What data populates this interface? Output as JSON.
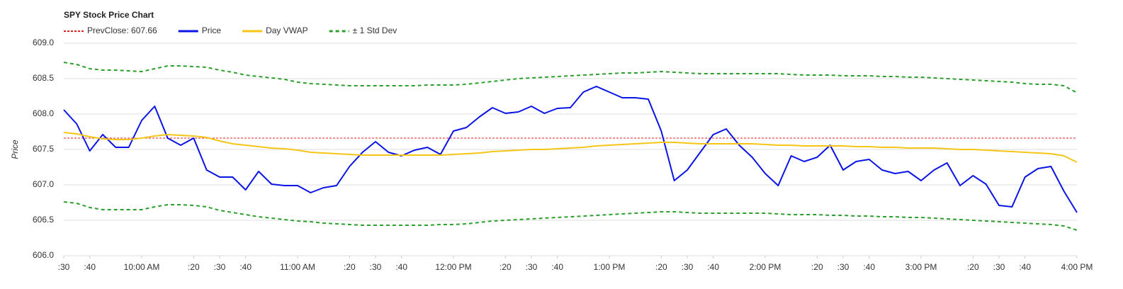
{
  "chart_data": {
    "type": "line",
    "title": "SPY Stock Price Chart",
    "y_label": "Price",
    "x": [
      "9:30",
      "9:35",
      "9:40",
      "9:45",
      "9:50",
      "9:55",
      "10:00",
      "10:05",
      "10:10",
      "10:15",
      "10:20",
      "10:25",
      "10:30",
      "10:35",
      "10:40",
      "10:45",
      "10:50",
      "10:55",
      "11:00",
      "11:05",
      "11:10",
      "11:15",
      "11:20",
      "11:25",
      "11:30",
      "11:35",
      "11:40",
      "11:45",
      "11:50",
      "11:55",
      "12:00",
      "12:05",
      "12:10",
      "12:15",
      "12:20",
      "12:25",
      "12:30",
      "12:35",
      "12:40",
      "12:45",
      "12:50",
      "12:55",
      "13:00",
      "13:05",
      "13:10",
      "13:15",
      "13:20",
      "13:25",
      "13:30",
      "13:35",
      "13:40",
      "13:45",
      "13:50",
      "13:55",
      "14:00",
      "14:05",
      "14:10",
      "14:15",
      "14:20",
      "14:25",
      "14:30",
      "14:35",
      "14:40",
      "14:45",
      "14:50",
      "14:55",
      "15:00",
      "15:05",
      "15:10",
      "15:15",
      "15:20",
      "15:25",
      "15:30",
      "15:35",
      "15:40",
      "15:45",
      "15:50",
      "15:55",
      "16:00"
    ],
    "reference_line": {
      "name": "PrevClose: 607.66",
      "value": 607.66,
      "color": "#e02020",
      "dashed": true
    },
    "series": [
      {
        "name": "Price",
        "color": "#0a14e6",
        "values": [
          608.06,
          607.86,
          607.48,
          607.71,
          607.53,
          607.53,
          607.91,
          608.11,
          607.66,
          607.56,
          607.66,
          607.21,
          607.11,
          607.11,
          606.93,
          607.19,
          607.01,
          606.99,
          606.99,
          606.89,
          606.96,
          606.99,
          607.26,
          607.46,
          607.61,
          607.46,
          607.41,
          607.49,
          607.53,
          607.43,
          607.76,
          607.81,
          607.96,
          608.09,
          608.01,
          608.03,
          608.11,
          608.01,
          608.08,
          608.09,
          608.31,
          608.39,
          608.31,
          608.23,
          608.23,
          608.21,
          607.76,
          607.06,
          607.21,
          607.46,
          607.71,
          607.79,
          607.56,
          607.39,
          607.16,
          606.99,
          607.41,
          607.33,
          607.39,
          607.56,
          607.21,
          607.33,
          607.36,
          607.21,
          607.16,
          607.19,
          607.06,
          607.21,
          607.31,
          606.99,
          607.13,
          607.01,
          606.71,
          606.69,
          607.11,
          607.23,
          607.26,
          606.91,
          606.61
        ]
      },
      {
        "name": "Day VWAP",
        "color": "#f5c518",
        "values": [
          607.74,
          607.72,
          607.68,
          607.65,
          607.64,
          607.64,
          607.66,
          607.69,
          607.71,
          607.7,
          607.69,
          607.67,
          607.62,
          607.58,
          607.56,
          607.54,
          607.52,
          607.51,
          607.49,
          607.46,
          607.45,
          607.44,
          607.43,
          607.42,
          607.42,
          607.42,
          607.42,
          607.42,
          607.42,
          607.42,
          607.43,
          607.44,
          607.45,
          607.47,
          607.48,
          607.49,
          607.5,
          607.5,
          607.51,
          607.52,
          607.53,
          607.55,
          607.56,
          607.57,
          607.58,
          607.59,
          607.6,
          607.6,
          607.59,
          607.58,
          607.58,
          607.58,
          607.58,
          607.58,
          607.57,
          607.56,
          607.56,
          607.55,
          607.55,
          607.55,
          607.55,
          607.54,
          607.54,
          607.53,
          607.53,
          607.52,
          607.52,
          607.52,
          607.51,
          607.5,
          607.5,
          607.49,
          607.48,
          607.47,
          607.46,
          607.45,
          607.44,
          607.41,
          607.32
        ]
      },
      {
        "name": "± 1 Std Dev",
        "color": "#2ca02c",
        "dashed": true,
        "values": [
          608.73,
          608.7,
          608.64,
          608.62,
          608.62,
          608.61,
          608.6,
          608.64,
          608.68,
          608.68,
          608.67,
          608.66,
          608.62,
          608.59,
          608.55,
          608.53,
          608.51,
          608.49,
          608.45,
          608.43,
          608.42,
          608.41,
          608.4,
          608.4,
          608.4,
          608.4,
          608.4,
          608.4,
          608.41,
          608.41,
          608.41,
          608.42,
          608.44,
          608.46,
          608.48,
          608.5,
          608.51,
          608.52,
          608.53,
          608.54,
          608.55,
          608.56,
          608.57,
          608.58,
          608.58,
          608.59,
          608.6,
          608.59,
          608.58,
          608.57,
          608.57,
          608.57,
          608.57,
          608.57,
          608.57,
          608.57,
          608.56,
          608.55,
          608.55,
          608.55,
          608.54,
          608.54,
          608.54,
          608.53,
          608.53,
          608.52,
          608.52,
          608.51,
          608.5,
          608.49,
          608.48,
          608.47,
          608.46,
          608.45,
          608.43,
          608.42,
          608.42,
          608.4,
          608.3
        ]
      },
      {
        "color": "#2ca02c",
        "dashed": true,
        "values": [
          606.76,
          606.74,
          606.68,
          606.65,
          606.65,
          606.65,
          606.65,
          606.69,
          606.72,
          606.72,
          606.71,
          606.69,
          606.64,
          606.61,
          606.58,
          606.55,
          606.53,
          606.51,
          606.49,
          606.48,
          606.46,
          606.45,
          606.44,
          606.43,
          606.43,
          606.43,
          606.43,
          606.43,
          606.43,
          606.44,
          606.44,
          606.45,
          606.47,
          606.49,
          606.5,
          606.51,
          606.52,
          606.53,
          606.54,
          606.55,
          606.56,
          606.57,
          606.58,
          606.59,
          606.6,
          606.61,
          606.62,
          606.62,
          606.61,
          606.6,
          606.6,
          606.6,
          606.6,
          606.6,
          606.6,
          606.59,
          606.58,
          606.58,
          606.58,
          606.57,
          606.57,
          606.56,
          606.56,
          606.55,
          606.55,
          606.54,
          606.54,
          606.53,
          606.52,
          606.51,
          606.5,
          606.49,
          606.48,
          606.47,
          606.46,
          606.45,
          606.44,
          606.42,
          606.36
        ]
      }
    ],
    "xlim": [
      "9:30",
      "16:00"
    ],
    "xticks": [
      {
        "value": "9:30",
        "label": ":30"
      },
      {
        "value": "9:40",
        "label": ":40"
      },
      {
        "value": "10:00",
        "label": "10:00 AM"
      },
      {
        "value": "10:20",
        "label": ":20"
      },
      {
        "value": "10:30",
        "label": ":30"
      },
      {
        "value": "10:40",
        "label": ":40"
      },
      {
        "value": "11:00",
        "label": "11:00 AM"
      },
      {
        "value": "11:20",
        "label": ":20"
      },
      {
        "value": "11:30",
        "label": ":30"
      },
      {
        "value": "11:40",
        "label": ":40"
      },
      {
        "value": "12:00",
        "label": "12:00 PM"
      },
      {
        "value": "12:20",
        "label": ":20"
      },
      {
        "value": "12:30",
        "label": ":30"
      },
      {
        "value": "12:40",
        "label": ":40"
      },
      {
        "value": "13:00",
        "label": "1:00 PM"
      },
      {
        "value": "13:20",
        "label": ":20"
      },
      {
        "value": "13:30",
        "label": ":30"
      },
      {
        "value": "13:40",
        "label": ":40"
      },
      {
        "value": "14:00",
        "label": "2:00 PM"
      },
      {
        "value": "14:20",
        "label": ":20"
      },
      {
        "value": "14:30",
        "label": ":30"
      },
      {
        "value": "14:40",
        "label": ":40"
      },
      {
        "value": "15:00",
        "label": "3:00 PM"
      },
      {
        "value": "15:20",
        "label": ":20"
      },
      {
        "value": "15:30",
        "label": ":30"
      },
      {
        "value": "15:40",
        "label": ":40"
      },
      {
        "value": "16:00",
        "label": "4:00 PM"
      }
    ],
    "ylim": [
      606,
      609
    ],
    "yticks": [
      {
        "value": 606,
        "label": "606.0"
      },
      606.5,
      {
        "value": 607,
        "label": "607.0"
      },
      607.5,
      {
        "value": 608,
        "label": "608.0"
      },
      608.5,
      {
        "value": 609,
        "label": "609.0"
      }
    ],
    "grid": true
  }
}
